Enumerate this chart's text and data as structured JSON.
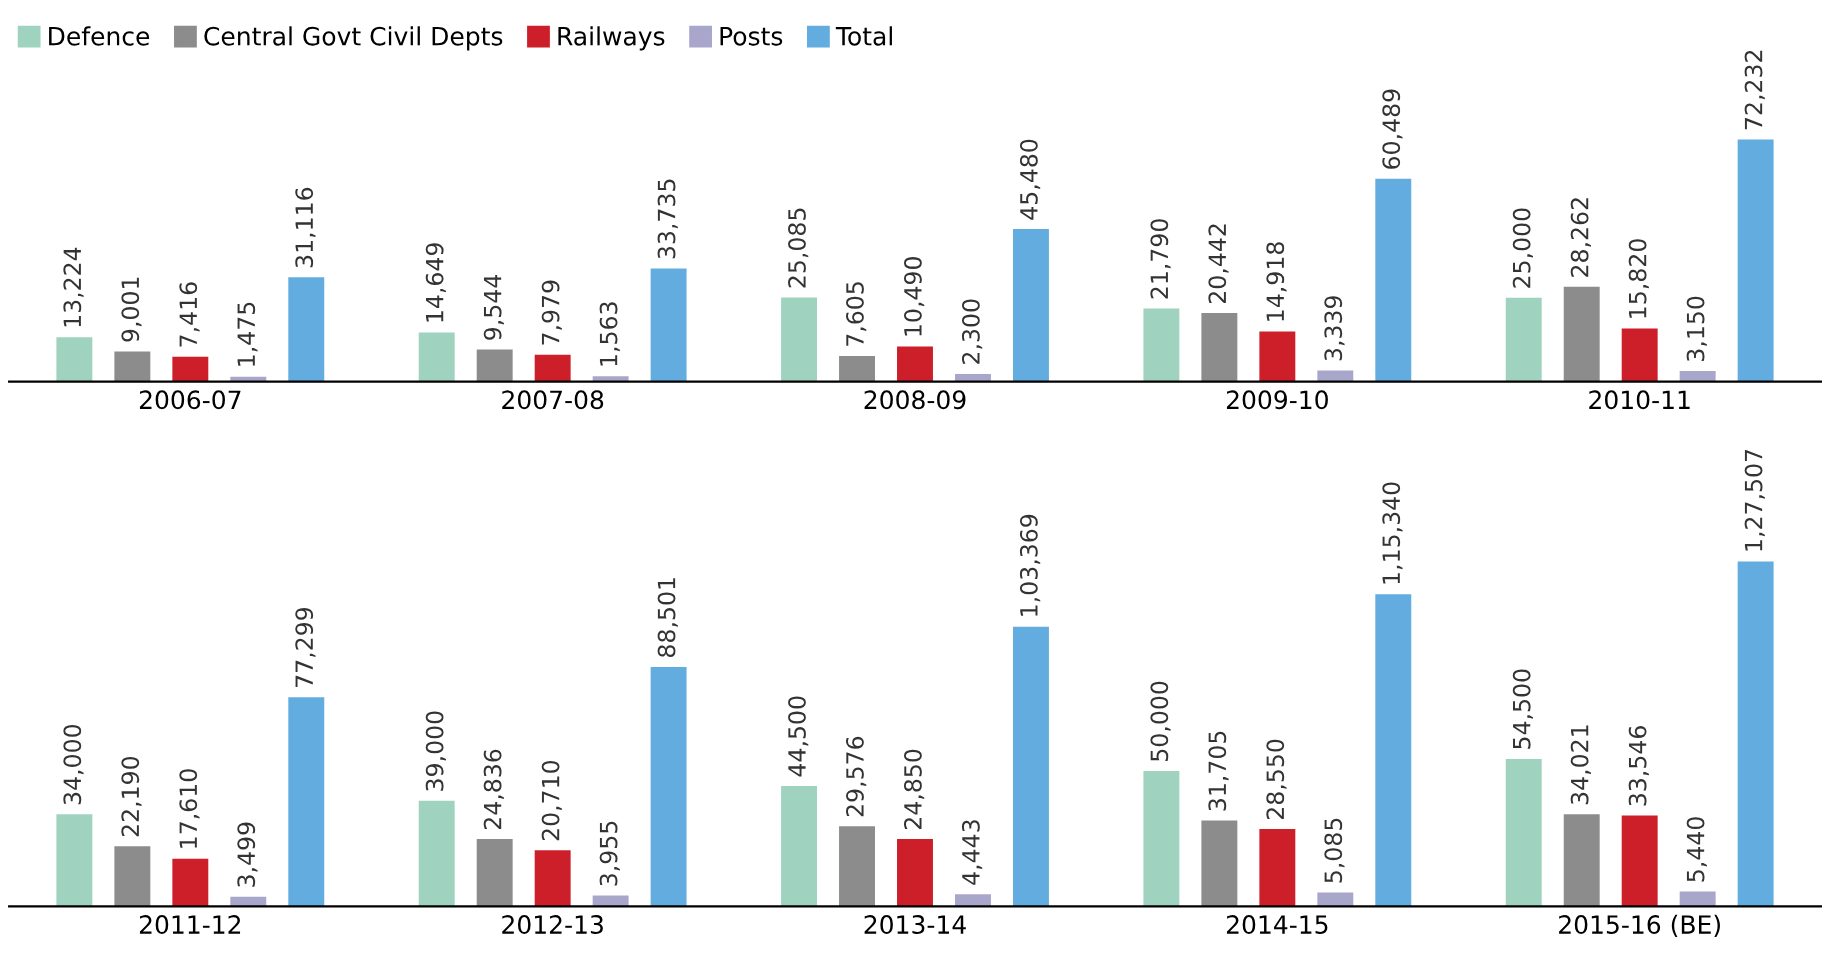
{
  "chart_data": [
    {
      "type": "bar",
      "categories": [
        "2006-07",
        "2007-08",
        "2008-09",
        "2009-10",
        "2010-11"
      ],
      "legend": "top left",
      "data_labels": false,
      "series": [
        {
          "name": "Defence",
          "color": "#9fd3c0",
          "values": [
            13224,
            14649,
            25085,
            21790,
            25000
          ],
          "value_labels": [
            "13,224",
            "14,649",
            "25,085",
            "21,790",
            "25,000"
          ]
        },
        {
          "name": "Central Govt Civil Depts",
          "color": "#8c8c8c",
          "values": [
            9001,
            9544,
            7605,
            20442,
            28262
          ],
          "value_labels": [
            "9,001",
            "9,544",
            "7,605",
            "20,442",
            "28,262"
          ]
        },
        {
          "name": "Railways",
          "color": "#cc1f2a",
          "values": [
            7416,
            7979,
            10490,
            14918,
            15820
          ],
          "value_labels": [
            "7,416",
            "7,979",
            "10,490",
            "14,918",
            "15,820"
          ]
        },
        {
          "name": "Posts",
          "color": "#a9a6cc",
          "values": [
            1475,
            1563,
            2300,
            3339,
            3150
          ],
          "value_labels": [
            "1,475",
            "1,563",
            "2,300",
            "3,339",
            "3,150"
          ]
        },
        {
          "name": "Total",
          "color": "#63ace0",
          "values": [
            31116,
            33735,
            45480,
            60489,
            72232
          ],
          "value_labels": [
            "31,116",
            "33,735",
            "45,480",
            "60,489",
            "72,232"
          ]
        }
      ]
    },
    {
      "type": "bar",
      "categories": [
        "2011-12",
        "2012-13",
        "2013-14",
        "2014-15",
        "2015-16 (BE)"
      ],
      "data_labels": false,
      "series": [
        {
          "color": "#9fd3c0",
          "values": [
            34000,
            39000,
            44500,
            50000,
            54500
          ],
          "value_labels": [
            "34,000",
            "39,000",
            "44,500",
            "50,000",
            "54,500"
          ]
        },
        {
          "color": "#8c8c8c",
          "values": [
            22190,
            24836,
            29576,
            31705,
            34021
          ],
          "value_labels": [
            "22,190",
            "24,836",
            "29,576",
            "31,705",
            "34,021"
          ]
        },
        {
          "color": "#cc1f2a",
          "values": [
            17610,
            20710,
            24850,
            28550,
            33546
          ],
          "value_labels": [
            "17,610",
            "20,710",
            "24,850",
            "28,550",
            "33,546"
          ]
        },
        {
          "color": "#a9a6cc",
          "values": [
            3499,
            3955,
            4443,
            5085,
            5440
          ],
          "value_labels": [
            "3,499",
            "3,955",
            "4,443",
            "5,085",
            "5,440"
          ]
        },
        {
          "color": "#63ace0",
          "values": [
            77299,
            88501,
            103369,
            115340,
            127507
          ],
          "value_labels": [
            "77,299",
            "88,501",
            "1,03,369",
            "1,15,340",
            "1,27,507"
          ]
        }
      ]
    }
  ]
}
